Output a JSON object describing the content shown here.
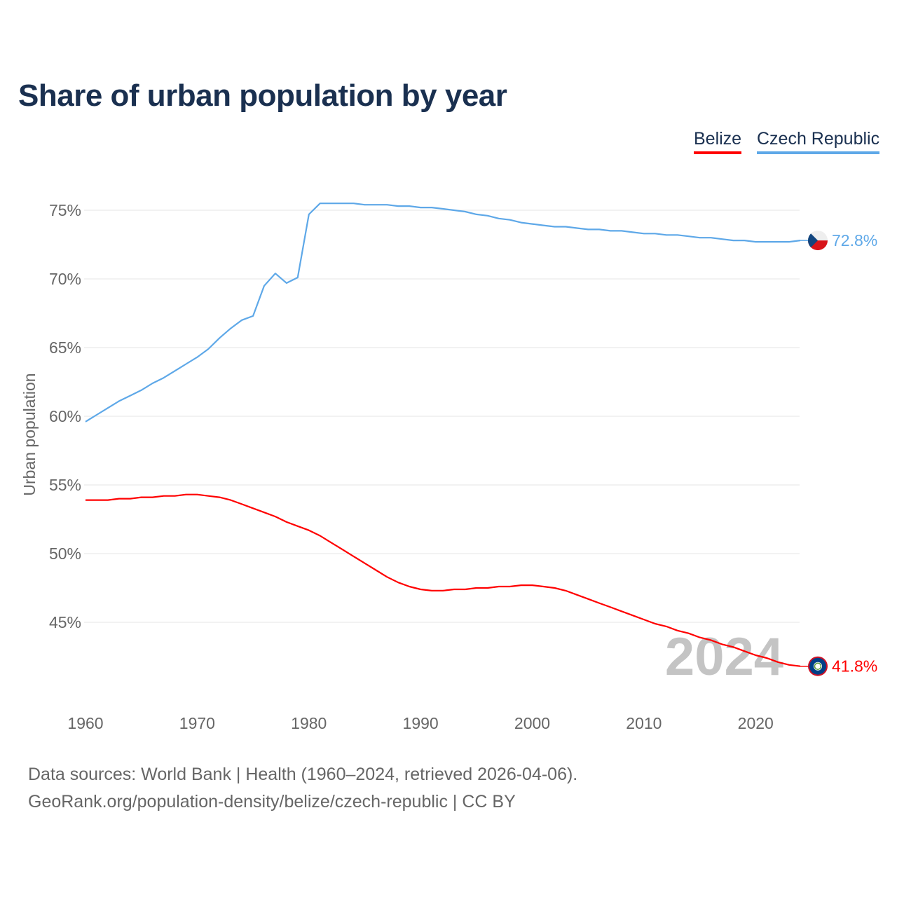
{
  "chart_data": {
    "type": "line",
    "title": "Share of urban population by year",
    "ylabel": "Urban population",
    "xlabel": "",
    "xlim": [
      1960,
      2024
    ],
    "ylim": [
      40,
      77
    ],
    "yticks": [
      45,
      50,
      55,
      60,
      65,
      70,
      75
    ],
    "ytick_labels": [
      "45%",
      "50%",
      "55%",
      "60%",
      "65%",
      "70%",
      "75%"
    ],
    "xticks": [
      1960,
      1970,
      1980,
      1990,
      2000,
      2010,
      2020
    ],
    "xtick_labels": [
      "1960",
      "1970",
      "1980",
      "1990",
      "2000",
      "2010",
      "2020"
    ],
    "grid": true,
    "legend_position": "top-right",
    "year_watermark": "2024",
    "x": [
      1960,
      1961,
      1962,
      1963,
      1964,
      1965,
      1966,
      1967,
      1968,
      1969,
      1970,
      1971,
      1972,
      1973,
      1974,
      1975,
      1976,
      1977,
      1978,
      1979,
      1980,
      1981,
      1982,
      1983,
      1984,
      1985,
      1986,
      1987,
      1988,
      1989,
      1990,
      1991,
      1992,
      1993,
      1994,
      1995,
      1996,
      1997,
      1998,
      1999,
      2000,
      2001,
      2002,
      2003,
      2004,
      2005,
      2006,
      2007,
      2008,
      2009,
      2010,
      2011,
      2012,
      2013,
      2014,
      2015,
      2016,
      2017,
      2018,
      2019,
      2020,
      2021,
      2022,
      2023,
      2024
    ],
    "series": [
      {
        "name": "Belize",
        "color": "#ff0000",
        "end_label": "41.8%",
        "flag": "belize-flag",
        "values": [
          53.9,
          53.9,
          53.9,
          54.0,
          54.0,
          54.1,
          54.1,
          54.2,
          54.2,
          54.3,
          54.3,
          54.2,
          54.1,
          53.9,
          53.6,
          53.3,
          53.0,
          52.7,
          52.3,
          52.0,
          51.7,
          51.3,
          50.8,
          50.3,
          49.8,
          49.3,
          48.8,
          48.3,
          47.9,
          47.6,
          47.4,
          47.3,
          47.3,
          47.4,
          47.4,
          47.5,
          47.5,
          47.6,
          47.6,
          47.7,
          47.7,
          47.6,
          47.5,
          47.3,
          47.0,
          46.7,
          46.4,
          46.1,
          45.8,
          45.5,
          45.2,
          44.9,
          44.7,
          44.4,
          44.2,
          43.9,
          43.7,
          43.4,
          43.2,
          42.9,
          42.6,
          42.4,
          42.1,
          41.9,
          41.8
        ]
      },
      {
        "name": "Czech Republic",
        "color": "#5ea8e8",
        "end_label": "72.8%",
        "flag": "czech-flag",
        "values": [
          59.6,
          60.1,
          60.6,
          61.1,
          61.5,
          61.9,
          62.4,
          62.8,
          63.3,
          63.8,
          64.3,
          64.9,
          65.7,
          66.4,
          67.0,
          67.3,
          69.5,
          70.4,
          69.7,
          70.1,
          74.7,
          75.5,
          75.5,
          75.5,
          75.5,
          75.4,
          75.4,
          75.4,
          75.3,
          75.3,
          75.2,
          75.2,
          75.1,
          75.0,
          74.9,
          74.7,
          74.6,
          74.4,
          74.3,
          74.1,
          74.0,
          73.9,
          73.8,
          73.8,
          73.7,
          73.6,
          73.6,
          73.5,
          73.5,
          73.4,
          73.3,
          73.3,
          73.2,
          73.2,
          73.1,
          73.0,
          73.0,
          72.9,
          72.8,
          72.8,
          72.7,
          72.7,
          72.7,
          72.7,
          72.8
        ]
      }
    ]
  },
  "footer": {
    "line1": "Data sources: World Bank | Health (1960–2024, retrieved 2026-04-06).",
    "line2": "GeoRank.org/population-density/belize/czech-republic | CC BY"
  }
}
